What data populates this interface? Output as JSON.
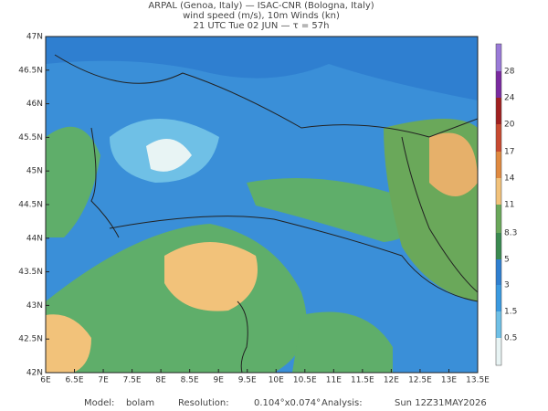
{
  "header": {
    "lines": [
      "ARPAL (Genoa, Italy)  —  ISAC-CNR (Bologna, Italy)",
      "wind speed (m/s), 10m Winds (kn)",
      "21 UTC Tue 02 JUN  —  τ = 57h"
    ]
  },
  "map": {
    "x_labels": [
      "6E",
      "6.5E",
      "7E",
      "7.5E",
      "8E",
      "8.5E",
      "9E",
      "9.5E",
      "10E",
      "10.5E",
      "11E",
      "11.5E",
      "12E",
      "12.5E",
      "13E",
      "13.5E"
    ],
    "y_labels": [
      "47N",
      "46.5N",
      "46N",
      "45.5N",
      "45N",
      "44.5N",
      "44N",
      "43.5N",
      "43N",
      "42.5N",
      "42N"
    ]
  },
  "colorbar": {
    "labels": [
      "28",
      "24",
      "20",
      "17",
      "14",
      "11",
      "8.3",
      "5",
      "3",
      "1.5",
      "0.5"
    ]
  },
  "footer": {
    "items": [
      "Model:",
      "bolam",
      "Resolution:",
      "0.104°x0.074°",
      "Analysis:",
      "Sun 12Z31MAY2026"
    ]
  }
}
